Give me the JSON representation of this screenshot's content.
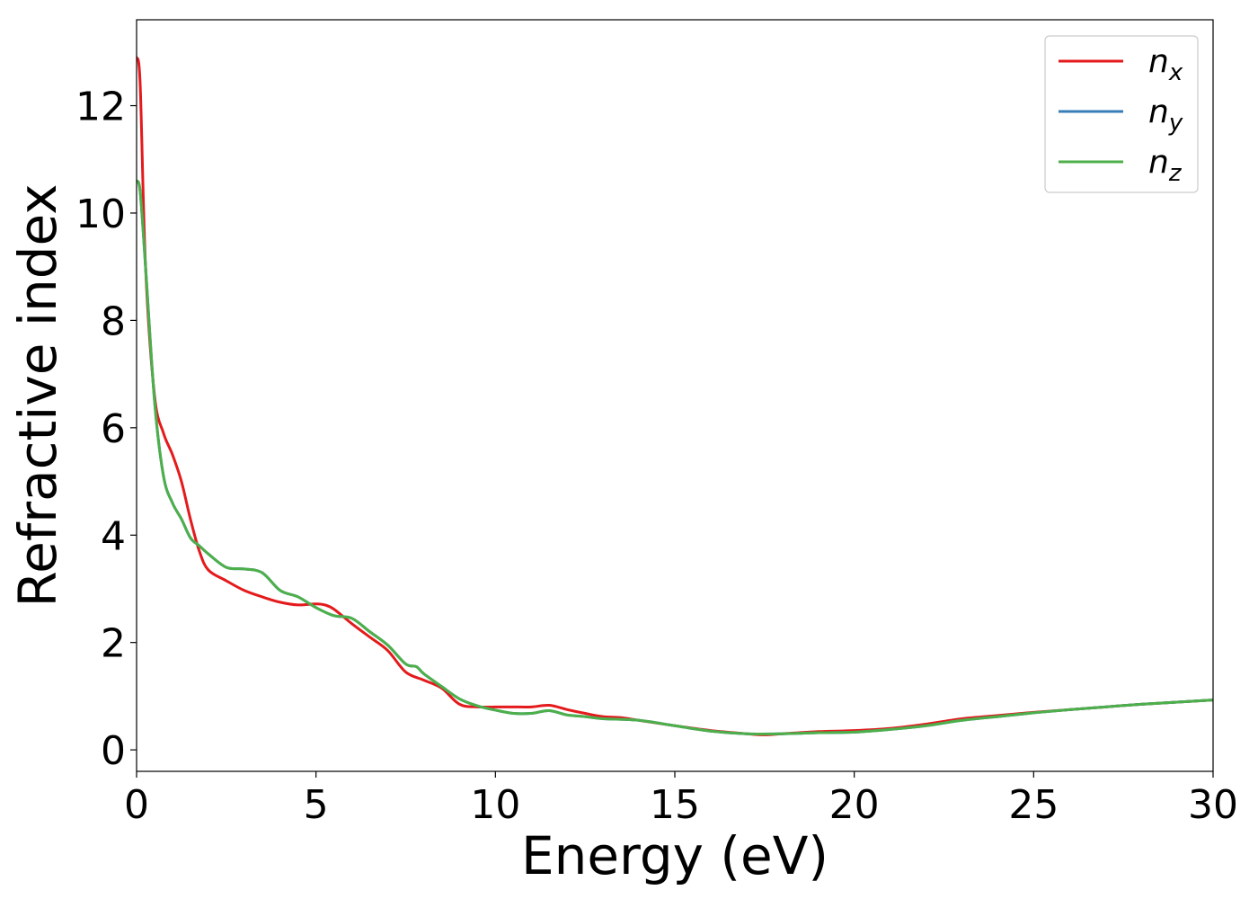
{
  "chart_data": {
    "type": "line",
    "title": "",
    "xlabel": "Energy (eV)",
    "ylabel": "Refractive index",
    "xlim": [
      0,
      30
    ],
    "ylim": [
      -0.4,
      13.6
    ],
    "xticks": [
      0,
      5,
      10,
      15,
      20,
      25,
      30
    ],
    "yticks": [
      0,
      2,
      4,
      6,
      8,
      10,
      12
    ],
    "xtick_labels": [
      "0",
      "5",
      "10",
      "15",
      "20",
      "25",
      "30"
    ],
    "ytick_labels": [
      "0",
      "2",
      "4",
      "6",
      "8",
      "10",
      "12"
    ],
    "grid": false,
    "legend_position": "top-right",
    "series": [
      {
        "name": "n",
        "subscript": "x",
        "color": "#e41a1c",
        "x": [
          0,
          0.1,
          0.25,
          0.5,
          0.75,
          1,
          1.25,
          1.5,
          1.75,
          2,
          2.5,
          3,
          3.5,
          4,
          4.5,
          5,
          5.25,
          5.5,
          6,
          6.5,
          7,
          7.5,
          8,
          8.5,
          9,
          9.5,
          10,
          10.5,
          11,
          11.5,
          12,
          12.5,
          13,
          13.5,
          14,
          15,
          16,
          17,
          17.5,
          18,
          19,
          20,
          21,
          22,
          23,
          24,
          25,
          26,
          27,
          28,
          29,
          30
        ],
        "y": [
          12.9,
          12.4,
          9.0,
          6.6,
          5.9,
          5.5,
          5.0,
          4.3,
          3.7,
          3.35,
          3.15,
          2.97,
          2.85,
          2.75,
          2.7,
          2.72,
          2.7,
          2.62,
          2.35,
          2.1,
          1.85,
          1.45,
          1.3,
          1.15,
          0.85,
          0.8,
          0.8,
          0.8,
          0.8,
          0.83,
          0.75,
          0.68,
          0.62,
          0.6,
          0.55,
          0.45,
          0.36,
          0.3,
          0.28,
          0.3,
          0.34,
          0.36,
          0.4,
          0.48,
          0.58,
          0.64,
          0.7,
          0.75,
          0.8,
          0.85,
          0.89,
          0.93
        ]
      },
      {
        "name": "n",
        "subscript": "y",
        "color": "#377eb8",
        "x": [
          0,
          0.1,
          0.25,
          0.5,
          0.75,
          1,
          1.25,
          1.5,
          1.75,
          2,
          2.5,
          3,
          3.5,
          4,
          4.5,
          5,
          5.5,
          6,
          6.5,
          7,
          7.5,
          7.8,
          8,
          8.5,
          9,
          9.5,
          10,
          10.5,
          11,
          11.5,
          12,
          12.5,
          13,
          14,
          15,
          16,
          17,
          18,
          19,
          20,
          21,
          22,
          23,
          24,
          25,
          26,
          27,
          28,
          29,
          30
        ],
        "y": [
          10.6,
          10.4,
          9.0,
          6.5,
          5.1,
          4.6,
          4.3,
          3.95,
          3.8,
          3.65,
          3.4,
          3.37,
          3.3,
          2.97,
          2.85,
          2.65,
          2.5,
          2.45,
          2.2,
          1.95,
          1.6,
          1.55,
          1.42,
          1.18,
          0.95,
          0.82,
          0.74,
          0.68,
          0.68,
          0.73,
          0.65,
          0.62,
          0.58,
          0.55,
          0.45,
          0.35,
          0.3,
          0.3,
          0.32,
          0.33,
          0.38,
          0.45,
          0.55,
          0.62,
          0.69,
          0.75,
          0.8,
          0.85,
          0.89,
          0.93
        ]
      },
      {
        "name": "n",
        "subscript": "z",
        "color": "#4daf4a",
        "x": [
          0,
          0.1,
          0.25,
          0.5,
          0.75,
          1,
          1.25,
          1.5,
          1.75,
          2,
          2.5,
          3,
          3.5,
          4,
          4.5,
          5,
          5.5,
          6,
          6.5,
          7,
          7.5,
          7.8,
          8,
          8.5,
          9,
          9.5,
          10,
          10.5,
          11,
          11.5,
          12,
          12.5,
          13,
          14,
          15,
          16,
          17,
          18,
          19,
          20,
          21,
          22,
          23,
          24,
          25,
          26,
          27,
          28,
          29,
          30
        ],
        "y": [
          10.6,
          10.4,
          9.0,
          6.5,
          5.1,
          4.6,
          4.3,
          3.95,
          3.8,
          3.65,
          3.4,
          3.37,
          3.3,
          2.97,
          2.85,
          2.65,
          2.5,
          2.45,
          2.2,
          1.95,
          1.6,
          1.55,
          1.42,
          1.18,
          0.95,
          0.82,
          0.74,
          0.68,
          0.68,
          0.73,
          0.65,
          0.62,
          0.58,
          0.55,
          0.45,
          0.35,
          0.3,
          0.3,
          0.32,
          0.33,
          0.38,
          0.45,
          0.55,
          0.62,
          0.69,
          0.75,
          0.8,
          0.85,
          0.89,
          0.93
        ]
      }
    ]
  }
}
